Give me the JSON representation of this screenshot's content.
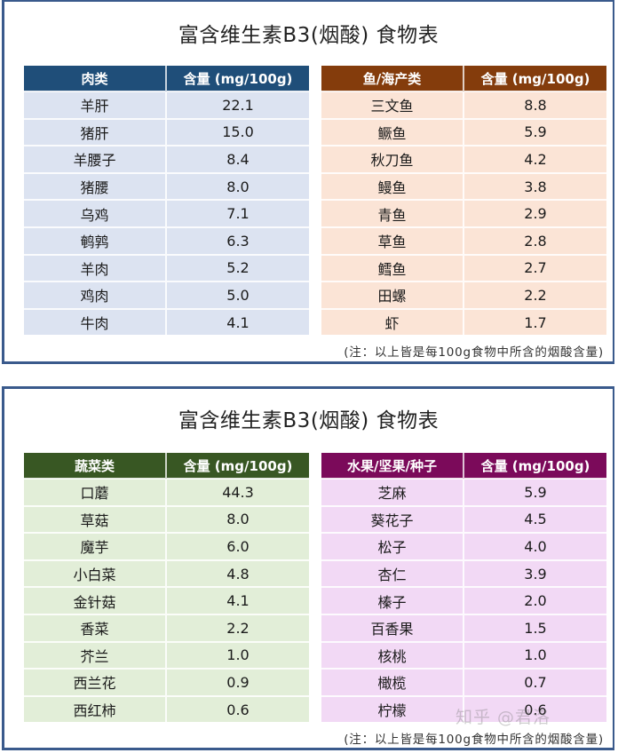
{
  "colors": {
    "border": "#3a5a8c",
    "meat_header": "#1f4e79",
    "meat_row": "#dce3f1",
    "seafood_header": "#843c0c",
    "seafood_row": "#fbe4d6",
    "veg_header": "#385723",
    "veg_row": "#e2eed8",
    "fruit_header": "#7b0a5a",
    "fruit_row": "#f2d9f5"
  },
  "panels": [
    {
      "title": "富含维生素B3(烟酸) 食物表",
      "note": "(注：以上皆是每100g食物中所含的烟酸含量)",
      "tables": [
        {
          "headers": [
            "肉类",
            "含量 (mg/100g)"
          ],
          "rows": [
            [
              "羊肝",
              "22.1"
            ],
            [
              "猪肝",
              "15.0"
            ],
            [
              "羊腰子",
              "8.4"
            ],
            [
              "猪腰",
              "8.0"
            ],
            [
              "乌鸡",
              "7.1"
            ],
            [
              "鹌鹑",
              "6.3"
            ],
            [
              "羊肉",
              "5.2"
            ],
            [
              "鸡肉",
              "5.0"
            ],
            [
              "牛肉",
              "4.1"
            ]
          ]
        },
        {
          "headers": [
            "鱼/海产类",
            "含量 (mg/100g)"
          ],
          "rows": [
            [
              "三文鱼",
              "8.8"
            ],
            [
              "鳜鱼",
              "5.9"
            ],
            [
              "秋刀鱼",
              "4.2"
            ],
            [
              "鳗鱼",
              "3.8"
            ],
            [
              "青鱼",
              "2.9"
            ],
            [
              "草鱼",
              "2.8"
            ],
            [
              "鳕鱼",
              "2.7"
            ],
            [
              "田螺",
              "2.2"
            ],
            [
              "虾",
              "1.7"
            ]
          ]
        }
      ]
    },
    {
      "title": "富含维生素B3(烟酸) 食物表",
      "note": "(注：以上皆是每100g食物中所含的烟酸含量)",
      "watermark": "知乎 @君洛",
      "tables": [
        {
          "headers": [
            "蔬菜类",
            "含量 (mg/100g)"
          ],
          "rows": [
            [
              "口蘑",
              "44.3"
            ],
            [
              "草菇",
              "8.0"
            ],
            [
              "魔芋",
              "6.0"
            ],
            [
              "小白菜",
              "4.8"
            ],
            [
              "金针菇",
              "4.1"
            ],
            [
              "香菜",
              "2.2"
            ],
            [
              "芥兰",
              "1.0"
            ],
            [
              "西兰花",
              "0.9"
            ],
            [
              "西红柿",
              "0.6"
            ]
          ]
        },
        {
          "headers": [
            "水果/坚果/种子",
            "含量 (mg/100g)"
          ],
          "rows": [
            [
              "芝麻",
              "5.9"
            ],
            [
              "葵花子",
              "4.5"
            ],
            [
              "松子",
              "4.0"
            ],
            [
              "杏仁",
              "3.9"
            ],
            [
              "榛子",
              "2.0"
            ],
            [
              "百香果",
              "1.5"
            ],
            [
              "核桃",
              "1.0"
            ],
            [
              "橄榄",
              "0.7"
            ],
            [
              "柠檬",
              "0.6"
            ]
          ]
        }
      ]
    }
  ]
}
